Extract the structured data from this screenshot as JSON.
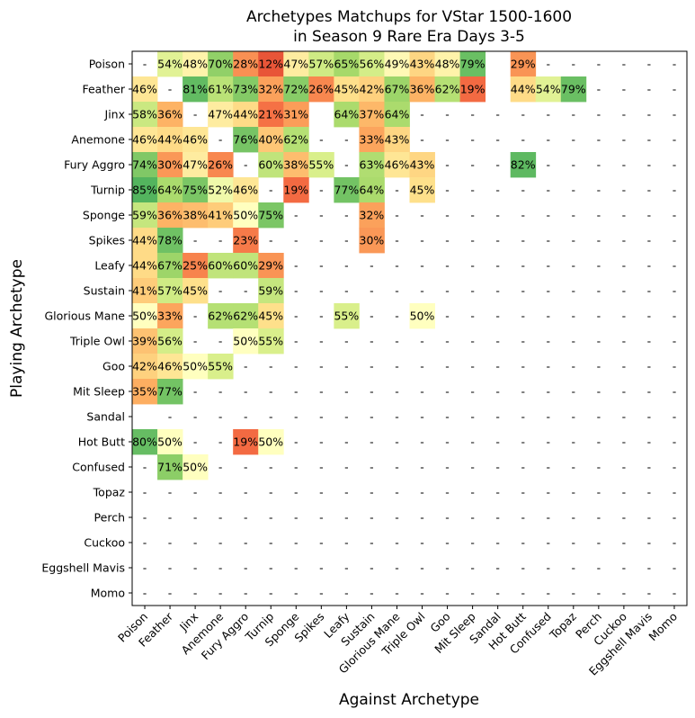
{
  "chart_data": {
    "type": "heatmap",
    "title_line1": "Archetypes Matchups for VStar 1500-1600",
    "title_line2": "in Season 9 Rare Era Days 3-5",
    "xlabel": "Against Archetype",
    "ylabel": "Playing Archetype",
    "value_format": "percent",
    "missing_label": "-",
    "color_scale": {
      "low": "#d73027",
      "mid": "#ffffbf",
      "high": "#1a9850",
      "range": [
        0,
        100
      ]
    },
    "rows": [
      "Poison",
      "Feather",
      "Jinx",
      "Anemone",
      "Fury Aggro",
      "Turnip",
      "Sponge",
      "Spikes",
      "Leafy",
      "Sustain",
      "Glorious Mane",
      "Triple Owl",
      "Goo",
      "Mit Sleep",
      "Sandal",
      "Hot Butt",
      "Confused",
      "Topaz",
      "Perch",
      "Cuckoo",
      "Eggshell Mavis",
      "Momo"
    ],
    "columns": [
      "Poison",
      "Feather",
      "Jinx",
      "Anemone",
      "Fury Aggro",
      "Turnip",
      "Sponge",
      "Spikes",
      "Leafy",
      "Sustain",
      "Glorious Mane",
      "Triple Owl",
      "Goo",
      "Mit Sleep",
      "Sandal",
      "Hot Butt",
      "Confused",
      "Topaz",
      "Perch",
      "Cuckoo",
      "Eggshell Mavis",
      "Momo"
    ],
    "values": [
      [
        "-",
        54,
        48,
        70,
        28,
        12,
        47,
        57,
        65,
        56,
        49,
        43,
        48,
        79,
        null,
        29,
        "-",
        "-",
        "-",
        "-",
        "-",
        "-"
      ],
      [
        46,
        "-",
        81,
        61,
        73,
        32,
        72,
        26,
        45,
        42,
        67,
        36,
        62,
        19,
        null,
        44,
        54,
        79,
        "-",
        "-",
        "-",
        "-"
      ],
      [
        58,
        36,
        "-",
        47,
        44,
        21,
        31,
        null,
        64,
        37,
        64,
        "-",
        "-",
        "-",
        "-",
        "-",
        "-",
        "-",
        "-",
        "-",
        "-",
        "-"
      ],
      [
        46,
        44,
        46,
        "-",
        76,
        40,
        62,
        "-",
        "-",
        33,
        43,
        "-",
        "-",
        "-",
        "-",
        "-",
        "-",
        "-",
        "-",
        "-",
        "-",
        "-"
      ],
      [
        74,
        30,
        47,
        26,
        "-",
        60,
        38,
        55,
        "-",
        63,
        46,
        43,
        "-",
        "-",
        "-",
        82,
        "-",
        "-",
        "-",
        "-",
        "-",
        "-"
      ],
      [
        85,
        64,
        75,
        52,
        46,
        "-",
        19,
        "-",
        77,
        64,
        "-",
        45,
        "-",
        "-",
        "-",
        "-",
        "-",
        "-",
        "-",
        "-",
        "-",
        "-"
      ],
      [
        59,
        36,
        38,
        41,
        50,
        75,
        "-",
        "-",
        "-",
        32,
        "-",
        "-",
        "-",
        "-",
        "-",
        "-",
        "-",
        "-",
        "-",
        "-",
        "-",
        "-"
      ],
      [
        44,
        78,
        "-",
        "-",
        23,
        "-",
        "-",
        "-",
        "-",
        30,
        "-",
        "-",
        "-",
        "-",
        "-",
        "-",
        "-",
        "-",
        "-",
        "-",
        "-",
        "-"
      ],
      [
        44,
        67,
        25,
        60,
        60,
        29,
        "-",
        "-",
        "-",
        "-",
        "-",
        "-",
        "-",
        "-",
        "-",
        "-",
        "-",
        "-",
        "-",
        "-",
        "-",
        "-"
      ],
      [
        41,
        57,
        45,
        "-",
        "-",
        59,
        "-",
        "-",
        "-",
        "-",
        "-",
        "-",
        "-",
        "-",
        "-",
        "-",
        "-",
        "-",
        "-",
        "-",
        "-",
        "-"
      ],
      [
        50,
        33,
        "-",
        62,
        62,
        45,
        "-",
        "-",
        55,
        "-",
        "-",
        50,
        "-",
        "-",
        "-",
        "-",
        "-",
        "-",
        "-",
        "-",
        "-",
        "-"
      ],
      [
        39,
        56,
        "-",
        "-",
        50,
        55,
        "-",
        "-",
        "-",
        "-",
        "-",
        "-",
        "-",
        "-",
        "-",
        "-",
        "-",
        "-",
        "-",
        "-",
        "-",
        "-"
      ],
      [
        42,
        46,
        50,
        55,
        "-",
        "-",
        "-",
        "-",
        "-",
        "-",
        "-",
        "-",
        "-",
        "-",
        "-",
        "-",
        "-",
        "-",
        "-",
        "-",
        "-",
        "-"
      ],
      [
        35,
        77,
        "-",
        "-",
        "-",
        "-",
        "-",
        "-",
        "-",
        "-",
        "-",
        "-",
        "-",
        "-",
        "-",
        "-",
        "-",
        "-",
        "-",
        "-",
        "-",
        "-"
      ],
      [
        null,
        "-",
        "-",
        "-",
        "-",
        "-",
        "-",
        "-",
        "-",
        "-",
        "-",
        "-",
        "-",
        "-",
        "-",
        "-",
        "-",
        "-",
        "-",
        "-",
        "-",
        "-"
      ],
      [
        80,
        50,
        "-",
        "-",
        19,
        50,
        "-",
        "-",
        "-",
        "-",
        "-",
        "-",
        "-",
        "-",
        "-",
        "-",
        "-",
        "-",
        "-",
        "-",
        "-",
        "-"
      ],
      [
        "-",
        71,
        50,
        "-",
        "-",
        "-",
        "-",
        "-",
        "-",
        "-",
        "-",
        "-",
        "-",
        "-",
        "-",
        "-",
        "-",
        "-",
        "-",
        "-",
        "-",
        "-"
      ],
      [
        "-",
        "-",
        "-",
        "-",
        "-",
        "-",
        "-",
        "-",
        "-",
        "-",
        "-",
        "-",
        "-",
        "-",
        "-",
        "-",
        "-",
        "-",
        "-",
        "-",
        "-",
        "-"
      ],
      [
        "-",
        "-",
        "-",
        "-",
        "-",
        "-",
        "-",
        "-",
        "-",
        "-",
        "-",
        "-",
        "-",
        "-",
        "-",
        "-",
        "-",
        "-",
        "-",
        "-",
        "-",
        "-"
      ],
      [
        "-",
        "-",
        "-",
        "-",
        "-",
        "-",
        "-",
        "-",
        "-",
        "-",
        "-",
        "-",
        "-",
        "-",
        "-",
        "-",
        "-",
        "-",
        "-",
        "-",
        "-",
        "-"
      ],
      [
        "-",
        "-",
        "-",
        "-",
        "-",
        "-",
        "-",
        "-",
        "-",
        "-",
        "-",
        "-",
        "-",
        "-",
        "-",
        "-",
        "-",
        "-",
        "-",
        "-",
        "-",
        "-"
      ],
      [
        "-",
        "-",
        "-",
        "-",
        "-",
        "-",
        "-",
        "-",
        "-",
        "-",
        "-",
        "-",
        "-",
        "-",
        "-",
        "-",
        "-",
        "-",
        "-",
        "-",
        "-",
        "-"
      ]
    ]
  }
}
